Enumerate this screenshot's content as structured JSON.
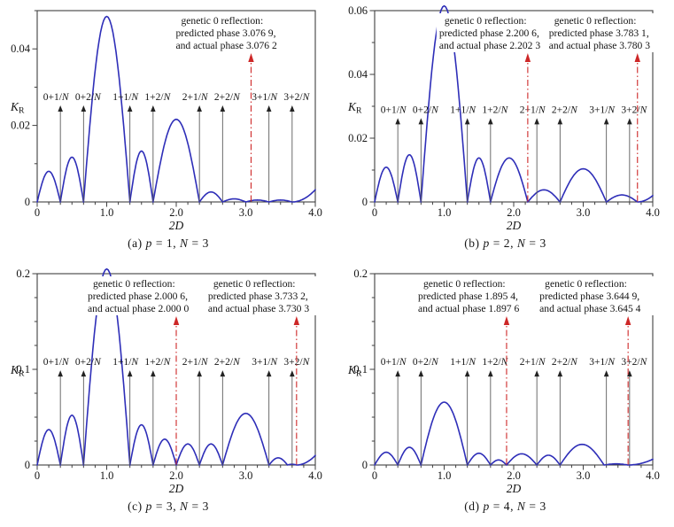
{
  "figure": {
    "background": "#ffffff"
  },
  "colors": {
    "curve": "#2e2eb8",
    "reflection": "#cd2727",
    "axis": "#3f3f3f",
    "arrow_line": "#5a5a5a",
    "arrow_head": "#222222",
    "text": "#141414",
    "mask": "#ffffff"
  },
  "chart_data": [
    {
      "id": "a",
      "type": "line",
      "caption": [
        {
          "t": "(a) "
        },
        {
          "t": "p",
          "i": true
        },
        {
          "t": " = 1, "
        },
        {
          "t": "N",
          "i": true
        },
        {
          "t": " = 3"
        }
      ],
      "xlabel": [
        {
          "t": "2",
          "i": true
        },
        {
          "t": "D",
          "i": true
        }
      ],
      "ylabel": [
        {
          "t": "K",
          "i": true
        },
        {
          "t": "R",
          "sub": true
        }
      ],
      "xlim": [
        0,
        4
      ],
      "ylim": [
        0,
        0.05
      ],
      "x_ticks": {
        "values": [
          0,
          1,
          2,
          3,
          4
        ],
        "labels": [
          "0",
          "1.0",
          "2.0",
          "3.0",
          "4.0"
        ],
        "minor_step": 0.16667
      },
      "y_ticks": {
        "values": [
          0,
          0.02,
          0.04
        ],
        "labels": [
          "0",
          "0.02",
          "0.04"
        ],
        "minor_step": 0.01
      },
      "harmonic_arrows": {
        "labels": [
          "0+1/N",
          "0+2/N",
          "1+1/N",
          "1+2/N",
          "2+1/N",
          "2+2/N",
          "3+1/N",
          "3+2/N"
        ],
        "xs": [
          0.3333,
          0.6667,
          1.3333,
          1.6667,
          2.3333,
          2.6667,
          3.3333,
          3.6667
        ],
        "top_value": 0.025
      },
      "reflections": [
        {
          "x": 3.0762,
          "lines": [
            "genetic 0 reflection:",
            "predicted phase 3.076 9,",
            "and actual phase 3.076 2"
          ]
        }
      ],
      "curve_lobes": [
        [
          0,
          0.3333,
          0.008
        ],
        [
          0.3333,
          0.6667,
          0.0117
        ],
        [
          0.6667,
          1.3333,
          0.0485
        ],
        [
          1.3333,
          1.6667,
          0.0133
        ],
        [
          1.6667,
          2.3333,
          0.0216
        ],
        [
          2.3333,
          2.6667,
          0.0026
        ],
        [
          2.6667,
          3.0,
          0.0008
        ],
        [
          3.0,
          3.3333,
          0.0005
        ],
        [
          3.3333,
          3.6667,
          0.0005
        ],
        [
          3.6667,
          4.0,
          0.0032,
          "rise"
        ]
      ]
    },
    {
      "id": "b",
      "type": "line",
      "caption": [
        {
          "t": "(b) "
        },
        {
          "t": "p",
          "i": true
        },
        {
          "t": " = 2, "
        },
        {
          "t": "N",
          "i": true
        },
        {
          "t": " = 3"
        }
      ],
      "xlabel": [
        {
          "t": "2",
          "i": true
        },
        {
          "t": "D",
          "i": true
        }
      ],
      "ylabel": [
        {
          "t": "K",
          "i": true
        },
        {
          "t": "R",
          "sub": true
        }
      ],
      "xlim": [
        0,
        4
      ],
      "ylim": [
        0,
        0.06
      ],
      "x_ticks": {
        "values": [
          0,
          1,
          2,
          3,
          4
        ],
        "labels": [
          "0",
          "1.0",
          "2.0",
          "3.0",
          "4.0"
        ],
        "minor_step": 0.16667
      },
      "y_ticks": {
        "values": [
          0,
          0.02,
          0.04,
          0.06
        ],
        "labels": [
          "0",
          "0.02",
          "0.04",
          "0.06"
        ],
        "minor_step": 0.01
      },
      "harmonic_arrows": {
        "labels": [
          "0+1/N",
          "0+2/N",
          "1+1/N",
          "1+2/N",
          "2+1/N",
          "2+2/N",
          "3+1/N",
          "3+2/N"
        ],
        "xs": [
          0.3333,
          0.6667,
          1.3333,
          1.6667,
          2.3333,
          2.6667,
          3.3333,
          3.6667
        ],
        "top_value": 0.026
      },
      "reflections": [
        {
          "x": 2.2023,
          "lines": [
            "genetic 0 reflection:",
            "predicted phase 2.200 6,",
            "and actual phase 2.202 3"
          ]
        },
        {
          "x": 3.7803,
          "lines": [
            "genetic 0 reflection:",
            "predicted phase 3.783 1,",
            "and actual phase 3.780 3"
          ]
        }
      ],
      "curve_lobes": [
        [
          0,
          0.3333,
          0.0109
        ],
        [
          0.3333,
          0.6667,
          0.0148
        ],
        [
          0.6667,
          1.3333,
          0.0615
        ],
        [
          1.3333,
          1.6667,
          0.0138
        ],
        [
          1.6667,
          2.2023,
          0.0138
        ],
        [
          2.2023,
          2.6667,
          0.0038
        ],
        [
          2.6667,
          3.3333,
          0.0104
        ],
        [
          3.3333,
          3.7803,
          0.0022
        ],
        [
          3.7803,
          4.0,
          0.002,
          "rise"
        ]
      ]
    },
    {
      "id": "c",
      "type": "line",
      "caption": [
        {
          "t": "(c) "
        },
        {
          "t": "p",
          "i": true
        },
        {
          "t": " = 3, "
        },
        {
          "t": "N",
          "i": true
        },
        {
          "t": " = 3"
        }
      ],
      "xlabel": [
        {
          "t": "2",
          "i": true
        },
        {
          "t": "D",
          "i": true
        }
      ],
      "ylabel": [
        {
          "t": "K",
          "i": true
        },
        {
          "t": "R",
          "sub": true
        }
      ],
      "xlim": [
        0,
        4
      ],
      "ylim": [
        0,
        0.2
      ],
      "x_ticks": {
        "values": [
          0,
          1,
          2,
          3,
          4
        ],
        "labels": [
          "0",
          "1.0",
          "2.0",
          "3.0",
          "4.0"
        ],
        "minor_step": 0.16667
      },
      "y_ticks": {
        "values": [
          0,
          0.1,
          0.2
        ],
        "labels": [
          "0",
          "0.1",
          "0.2"
        ],
        "minor_step": 0.025
      },
      "harmonic_arrows": {
        "labels": [
          "0+1/N",
          "0+2/N",
          "1+1/N",
          "1+2/N",
          "2+1/N",
          "2+2/N",
          "3+1/N",
          "3+2/N"
        ],
        "xs": [
          0.3333,
          0.6667,
          1.3333,
          1.6667,
          2.3333,
          2.6667,
          3.3333,
          3.6667
        ],
        "top_value": 0.098
      },
      "reflections": [
        {
          "x": 2.0,
          "lines": [
            "genetic 0 reflection:",
            "predicted phase 2.000 6,",
            "and actual phase 2.000 0"
          ]
        },
        {
          "x": 3.7303,
          "lines": [
            "genetic 0 reflection:",
            "predicted phase 3.733 2,",
            "and actual phase 3.730 3"
          ]
        }
      ],
      "curve_lobes": [
        [
          0,
          0.3333,
          0.037
        ],
        [
          0.3333,
          0.6667,
          0.052
        ],
        [
          0.6667,
          1.3333,
          0.205
        ],
        [
          1.3333,
          1.6667,
          0.042
        ],
        [
          1.6667,
          2.0,
          0.027
        ],
        [
          2.0,
          2.3333,
          0.022
        ],
        [
          2.3333,
          2.6667,
          0.022
        ],
        [
          2.6667,
          3.3333,
          0.054
        ],
        [
          3.3333,
          3.6,
          0.0075
        ],
        [
          3.6,
          3.7303,
          0.0008
        ],
        [
          3.7303,
          4.0,
          0.01,
          "rise"
        ]
      ]
    },
    {
      "id": "d",
      "type": "line",
      "caption": [
        {
          "t": "(d) "
        },
        {
          "t": "p",
          "i": true
        },
        {
          "t": " = 4, "
        },
        {
          "t": "N",
          "i": true
        },
        {
          "t": " = 3"
        }
      ],
      "xlabel": [
        {
          "t": "2",
          "i": true
        },
        {
          "t": "D",
          "i": true
        }
      ],
      "ylabel": [
        {
          "t": "K",
          "i": true
        },
        {
          "t": "R",
          "sub": true
        }
      ],
      "xlim": [
        0,
        4
      ],
      "ylim": [
        0,
        0.2
      ],
      "x_ticks": {
        "values": [
          0,
          1,
          2,
          3,
          4
        ],
        "labels": [
          "0",
          "1.0",
          "2.0",
          "3.0",
          "4.0"
        ],
        "minor_step": 0.16667
      },
      "y_ticks": {
        "values": [
          0,
          0.1,
          0.2
        ],
        "labels": [
          "0",
          "0.1",
          "0.2"
        ],
        "minor_step": 0.025
      },
      "harmonic_arrows": {
        "labels": [
          "0+1/N",
          "0+2/N",
          "1+1/N",
          "1+2/N",
          "2+1/N",
          "2+2/N",
          "3+1/N",
          "3+2/N"
        ],
        "xs": [
          0.3333,
          0.6667,
          1.3333,
          1.6667,
          2.3333,
          2.6667,
          3.3333,
          3.6667
        ],
        "top_value": 0.098
      },
      "reflections": [
        {
          "x": 1.8976,
          "lines": [
            "genetic 0 reflection:",
            "predicted phase 1.895 4,",
            "and actual phase 1.897 6"
          ]
        },
        {
          "x": 3.6454,
          "lines": [
            "genetic 0 reflection:",
            "predicted phase 3.644 9,",
            "and actual phase 3.645 4"
          ]
        }
      ],
      "curve_lobes": [
        [
          0,
          0.3333,
          0.0133
        ],
        [
          0.3333,
          0.6667,
          0.0185
        ],
        [
          0.6667,
          1.3333,
          0.0657
        ],
        [
          1.3333,
          1.6667,
          0.0123
        ],
        [
          1.6667,
          1.8976,
          0.0053
        ],
        [
          1.8976,
          2.3333,
          0.0117
        ],
        [
          2.3333,
          2.6667,
          0.0102
        ],
        [
          2.6667,
          3.3,
          0.0216
        ],
        [
          3.3,
          3.6454,
          0.0012
        ],
        [
          3.6454,
          4.0,
          0.006,
          "rise"
        ]
      ]
    }
  ]
}
